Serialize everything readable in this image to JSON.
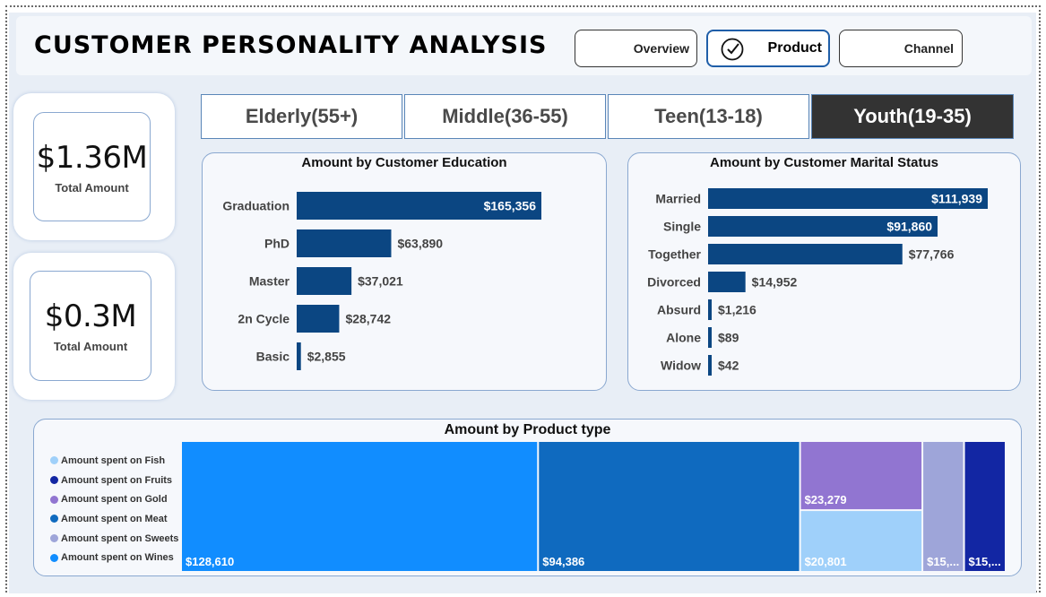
{
  "header": {
    "title": "CUSTOMER PERSONALITY ANALYSIS"
  },
  "nav": [
    {
      "label": "Overview",
      "active": false
    },
    {
      "label": "Product",
      "active": true
    },
    {
      "label": "Channel",
      "active": false
    }
  ],
  "kpis": [
    {
      "value": "$1.36M",
      "label": "Total Amount"
    },
    {
      "value": "$0.3M",
      "label": "Total Amount"
    }
  ],
  "age_tabs": [
    {
      "label": "Elderly(55+)",
      "selected": false
    },
    {
      "label": "Middle(36-55)",
      "selected": false
    },
    {
      "label": "Teen(13-18)",
      "selected": false
    },
    {
      "label": "Youth(19-35)",
      "selected": true
    }
  ],
  "colors": {
    "bar": "#0b4682",
    "fish": "#9fd0fa",
    "fruits": "#1226a3",
    "gold": "#9175d1",
    "meat": "#0f6abf",
    "sweets": "#9ea5d9",
    "wines": "#118dff",
    "selected_tab": "#333333"
  },
  "chart_data": [
    {
      "type": "bar",
      "orientation": "horizontal",
      "title": "Amount by Customer Education",
      "categories": [
        "Graduation",
        "PhD",
        "Master",
        "2n Cycle",
        "Basic"
      ],
      "values": [
        165356,
        63890,
        37021,
        28742,
        2855
      ],
      "labels": [
        "$165,356",
        "$63,890",
        "$37,021",
        "$28,742",
        "$2,855"
      ]
    },
    {
      "type": "bar",
      "orientation": "horizontal",
      "title": "Amount by Customer Marital Status",
      "categories": [
        "Married",
        "Single",
        "Together",
        "Divorced",
        "Absurd",
        "Alone",
        "Widow"
      ],
      "values": [
        111939,
        91860,
        77766,
        14952,
        1216,
        89,
        42
      ],
      "labels": [
        "$111,939",
        "$91,860",
        "$77,766",
        "$14,952",
        "$1,216",
        "$89",
        "$42"
      ]
    },
    {
      "type": "treemap",
      "title": "Amount by Product type",
      "legend": [
        "Amount spent on Fish",
        "Amount spent on Fruits",
        "Amount spent on Gold",
        "Amount spent on Meat",
        "Amount spent on Sweets",
        "Amount spent on Wines"
      ],
      "legend_colors": [
        "fish",
        "fruits",
        "gold",
        "meat",
        "sweets",
        "wines"
      ],
      "items": [
        {
          "key": "wines",
          "value": 128610,
          "label": "$128,610"
        },
        {
          "key": "meat",
          "value": 94386,
          "label": "$94,386"
        },
        {
          "key": "gold",
          "value": 23279,
          "label": "$23,279"
        },
        {
          "key": "fish",
          "value": 20801,
          "label": "$20,801"
        },
        {
          "key": "sweets",
          "value": 15000,
          "label": "$15,..."
        },
        {
          "key": "fruits",
          "value": 15000,
          "label": "$15,..."
        }
      ]
    }
  ]
}
